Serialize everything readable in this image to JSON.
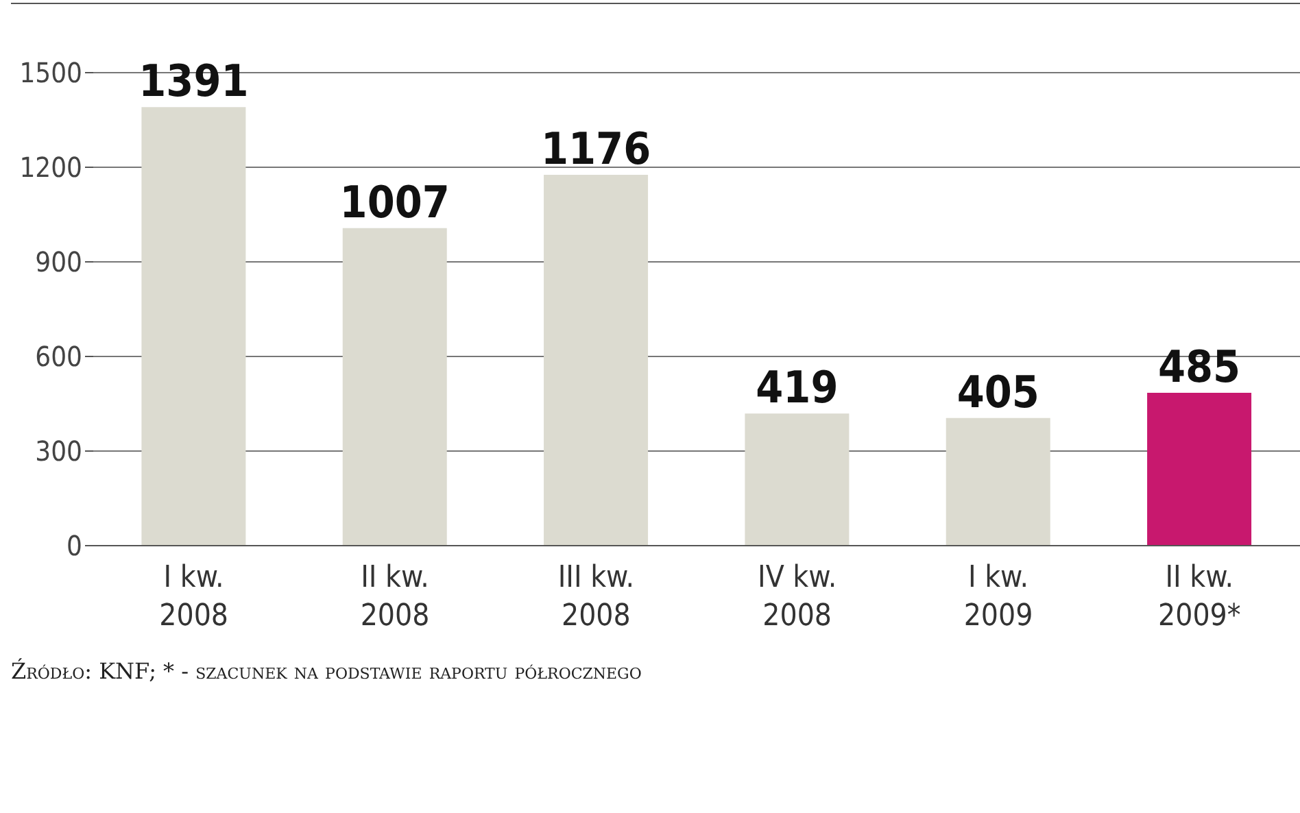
{
  "chart_data": {
    "type": "bar",
    "categories": [
      "I kw.\n2008",
      "II kw.\n2008",
      "III kw.\n2008",
      "IV kw.\n2008",
      "I kw.\n2009",
      "II kw.\n2009*"
    ],
    "values": [
      1391,
      1007,
      1176,
      419,
      405,
      485
    ],
    "colors": [
      "#dcdbd0",
      "#dcdbd0",
      "#dcdbd0",
      "#dcdbd0",
      "#dcdbd0",
      "#c8186e"
    ],
    "ylim": [
      0,
      1500
    ],
    "yticks": [
      0,
      300,
      600,
      900,
      1200,
      1500
    ],
    "grid": "y",
    "data_labels": true,
    "annotations": [
      "Źródło: KNF; * - szacunek na podstawie raportu półrocznego"
    ]
  }
}
